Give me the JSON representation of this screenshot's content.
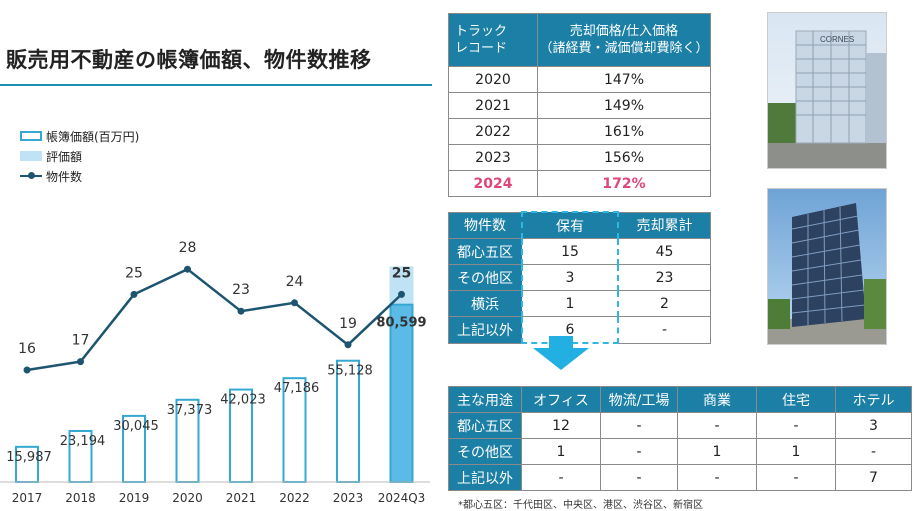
{
  "title": "販売用不動産の帳簿価額、物件数推移",
  "legend": {
    "book_value": "帳簿価額(百万円)",
    "valuation": "評価額",
    "count": "物件数"
  },
  "chart_data": {
    "type": "bar",
    "categories": [
      "2017",
      "2018",
      "2019",
      "2020",
      "2021",
      "2022",
      "2023",
      "2024Q3"
    ],
    "series": [
      {
        "name": "帳簿価額(百万円)",
        "type": "bar",
        "values": [
          15987,
          23194,
          30045,
          37373,
          42023,
          47186,
          55128,
          80599
        ],
        "labels": [
          "15,987",
          "23,194",
          "30,045",
          "37,373",
          "42,023",
          "47,186",
          "55,128",
          "80,599"
        ]
      },
      {
        "name": "評価額",
        "type": "bar",
        "values": [
          null,
          null,
          null,
          null,
          null,
          null,
          null,
          98000
        ]
      },
      {
        "name": "物件数",
        "type": "line",
        "values": [
          16,
          17,
          25,
          28,
          23,
          24,
          19,
          25
        ]
      }
    ],
    "xlabel": "",
    "ylabel": "",
    "legend_position": "top-left"
  },
  "track_record": {
    "header_col1": "トラック\nレコード",
    "header_col2": "売却価格/仕入価格\n（諸経費・減価償却費除く）",
    "rows": [
      {
        "year": "2020",
        "value": "147%"
      },
      {
        "year": "2021",
        "value": "149%"
      },
      {
        "year": "2022",
        "value": "161%"
      },
      {
        "year": "2023",
        "value": "156%"
      },
      {
        "year": "2024",
        "value": "172%"
      }
    ]
  },
  "properties": {
    "headers": [
      "物件数",
      "保有",
      "売却累計"
    ],
    "rows": [
      [
        "都心五区",
        "15",
        "45"
      ],
      [
        "その他区",
        "3",
        "23"
      ],
      [
        "横浜",
        "1",
        "2"
      ],
      [
        "上記以外",
        "6",
        "-"
      ]
    ]
  },
  "uses": {
    "headers": [
      "主な用途",
      "オフィス",
      "物流/工場",
      "商業",
      "住宅",
      "ホテル"
    ],
    "rows": [
      [
        "都心五区",
        "12",
        "-",
        "-",
        "-",
        "3"
      ],
      [
        "その他区",
        "1",
        "-",
        "1",
        "1",
        "-"
      ],
      [
        "上記以外",
        "-",
        "-",
        "-",
        "-",
        "7"
      ]
    ]
  },
  "footnote": "*都心五区：千代田区、中央区、港区、渋谷区、新宿区",
  "photo1": {
    "sign": "CORNES"
  },
  "colors": {
    "bar_outline": "#35a8d2",
    "bar_2024": "#5bbbe6",
    "valuation": "#bfe3f4",
    "line": "#1d5570",
    "header": "#1b7fa6",
    "highlight": "#e0457b"
  }
}
